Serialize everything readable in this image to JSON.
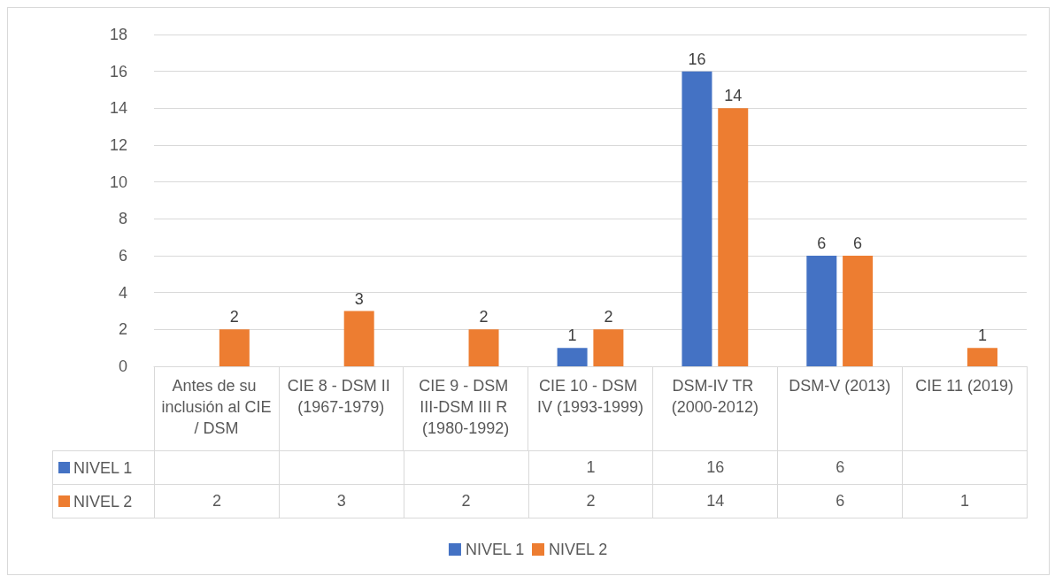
{
  "chart_data": {
    "type": "bar",
    "categories": [
      "Antes de su inclusión al CIE/ DSM",
      "CIE 8 - DSM II (1967-1979)",
      "CIE 9 - DSM III-DSM III R (1980-1992)",
      "CIE 10 - DSM IV (1993-1999)",
      "DSM-IV TR (2000-2012)",
      "DSM-V (2013)",
      "CIE 11 (2019)"
    ],
    "series": [
      {
        "name": "NIVEL 1",
        "color": "#4472c4",
        "values": [
          null,
          null,
          null,
          1,
          16,
          6,
          null
        ],
        "value_labels": [
          null,
          null,
          null,
          "1",
          "16",
          "6",
          null
        ]
      },
      {
        "name": "NIVEL 2",
        "color": "#ed7d31",
        "values": [
          2,
          3,
          2,
          2,
          14,
          6,
          1
        ],
        "value_labels": [
          "2",
          "3",
          "2",
          "2",
          "14",
          "6",
          "1"
        ]
      }
    ],
    "ylim": [
      0,
      18
    ],
    "yticks": [
      0,
      2,
      4,
      6,
      8,
      10,
      12,
      14,
      16,
      18
    ],
    "grid": "y",
    "legend": "bottom",
    "data_labels": true
  }
}
